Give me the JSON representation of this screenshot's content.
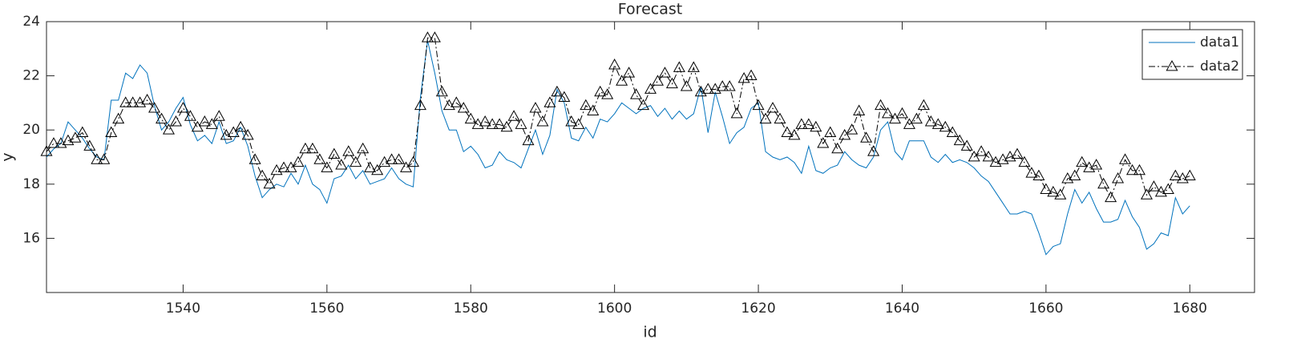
{
  "chart_data": {
    "type": "line",
    "title": "Forecast",
    "x_label": "id",
    "y_label": "y",
    "x": [
      1521,
      1522,
      1523,
      1524,
      1525,
      1526,
      1527,
      1528,
      1529,
      1530,
      1531,
      1532,
      1533,
      1534,
      1535,
      1536,
      1537,
      1538,
      1539,
      1540,
      1541,
      1542,
      1543,
      1544,
      1545,
      1546,
      1547,
      1548,
      1549,
      1550,
      1551,
      1552,
      1553,
      1554,
      1555,
      1556,
      1557,
      1558,
      1559,
      1560,
      1561,
      1562,
      1563,
      1564,
      1565,
      1566,
      1567,
      1568,
      1569,
      1570,
      1571,
      1572,
      1573,
      1574,
      1575,
      1576,
      1577,
      1578,
      1579,
      1580,
      1581,
      1582,
      1583,
      1584,
      1585,
      1586,
      1587,
      1588,
      1589,
      1590,
      1591,
      1592,
      1593,
      1594,
      1595,
      1596,
      1597,
      1598,
      1599,
      1600,
      1601,
      1602,
      1603,
      1604,
      1605,
      1606,
      1607,
      1608,
      1609,
      1610,
      1611,
      1612,
      1613,
      1614,
      1615,
      1616,
      1617,
      1618,
      1619,
      1620,
      1621,
      1622,
      1623,
      1624,
      1625,
      1626,
      1627,
      1628,
      1629,
      1630,
      1631,
      1632,
      1633,
      1634,
      1635,
      1636,
      1637,
      1638,
      1639,
      1640,
      1641,
      1642,
      1643,
      1644,
      1645,
      1646,
      1647,
      1648,
      1649,
      1650,
      1651,
      1652,
      1653,
      1654,
      1655,
      1656,
      1657,
      1658,
      1659,
      1660,
      1661,
      1662,
      1663,
      1664,
      1665,
      1666,
      1667,
      1668,
      1669,
      1670,
      1671,
      1672,
      1673,
      1674,
      1675,
      1676,
      1677,
      1678,
      1679,
      1680
    ],
    "series": [
      {
        "name": "data1",
        "color": "#0072bd",
        "linestyle": "solid",
        "marker": "none",
        "values": [
          19.0,
          19.3,
          19.5,
          20.3,
          20.0,
          19.7,
          19.3,
          19.0,
          18.9,
          21.1,
          21.1,
          22.1,
          21.9,
          22.4,
          22.1,
          20.9,
          20.0,
          20.3,
          20.8,
          21.2,
          20.2,
          19.6,
          19.8,
          19.5,
          20.3,
          19.5,
          19.6,
          20.1,
          19.4,
          18.3,
          17.5,
          17.8,
          18.0,
          17.9,
          18.4,
          18.0,
          18.7,
          18.0,
          17.8,
          17.3,
          18.2,
          18.3,
          18.7,
          18.2,
          18.5,
          18.0,
          18.1,
          18.2,
          18.6,
          18.2,
          18.0,
          17.9,
          21.2,
          23.3,
          22.1,
          20.7,
          20.0,
          20.0,
          19.2,
          19.4,
          19.1,
          18.6,
          18.7,
          19.2,
          18.9,
          18.8,
          18.6,
          19.3,
          20.0,
          19.1,
          19.8,
          21.5,
          21.0,
          19.7,
          19.6,
          20.1,
          19.7,
          20.4,
          20.3,
          20.6,
          21.0,
          20.8,
          20.6,
          20.8,
          20.9,
          20.5,
          20.8,
          20.4,
          20.7,
          20.4,
          20.6,
          21.6,
          19.9,
          21.4,
          20.5,
          19.5,
          19.9,
          20.1,
          20.8,
          21.0,
          19.2,
          19.0,
          18.9,
          19.0,
          18.8,
          18.4,
          19.4,
          18.5,
          18.4,
          18.6,
          18.7,
          19.2,
          18.9,
          18.7,
          18.6,
          19.0,
          20.0,
          20.3,
          19.2,
          18.9,
          19.6,
          19.6,
          19.6,
          19.0,
          18.8,
          19.1,
          18.8,
          18.9,
          18.8,
          18.6,
          18.3,
          18.1,
          17.7,
          17.3,
          16.9,
          16.9,
          17.0,
          16.9,
          16.2,
          15.4,
          15.7,
          15.8,
          16.9,
          17.8,
          17.3,
          17.7,
          17.1,
          16.6,
          16.6,
          16.7,
          17.4,
          16.8,
          16.4,
          15.6,
          15.8,
          16.2,
          16.1,
          17.5,
          16.9,
          17.2
        ]
      },
      {
        "name": "data2",
        "color": "#000000",
        "linestyle": "dashdot",
        "marker": "triangle",
        "values": [
          19.2,
          19.5,
          19.5,
          19.6,
          19.7,
          19.9,
          19.4,
          18.9,
          18.9,
          19.9,
          20.4,
          21.0,
          21.0,
          21.0,
          21.1,
          20.8,
          20.4,
          20.0,
          20.3,
          20.8,
          20.5,
          20.1,
          20.3,
          20.2,
          20.5,
          19.8,
          19.9,
          20.1,
          19.8,
          18.9,
          18.3,
          18.0,
          18.5,
          18.6,
          18.6,
          18.8,
          19.3,
          19.3,
          18.9,
          18.6,
          19.1,
          18.7,
          19.2,
          18.8,
          19.3,
          18.6,
          18.5,
          18.8,
          18.9,
          18.9,
          18.6,
          18.8,
          20.9,
          23.4,
          23.4,
          21.4,
          20.9,
          21.0,
          20.8,
          20.4,
          20.2,
          20.3,
          20.2,
          20.2,
          20.1,
          20.5,
          20.2,
          19.6,
          20.8,
          20.3,
          21.0,
          21.4,
          21.2,
          20.3,
          20.2,
          20.9,
          20.7,
          21.4,
          21.3,
          22.4,
          21.8,
          22.1,
          21.3,
          20.9,
          21.5,
          21.8,
          22.1,
          21.7,
          22.3,
          21.6,
          22.3,
          21.4,
          21.5,
          21.5,
          21.6,
          21.6,
          20.6,
          21.9,
          22.0,
          20.9,
          20.4,
          20.8,
          20.4,
          19.9,
          19.8,
          20.2,
          20.2,
          20.1,
          19.5,
          19.9,
          19.3,
          19.8,
          20.0,
          20.7,
          19.7,
          19.2,
          20.9,
          20.6,
          20.4,
          20.6,
          20.2,
          20.4,
          20.9,
          20.3,
          20.2,
          20.1,
          19.9,
          19.6,
          19.4,
          19.0,
          19.2,
          19.0,
          18.8,
          18.9,
          19.0,
          19.1,
          18.8,
          18.4,
          18.3,
          17.8,
          17.7,
          17.6,
          18.2,
          18.3,
          18.8,
          18.6,
          18.7,
          18.0,
          17.5,
          18.2,
          18.9,
          18.5,
          18.5,
          17.6,
          17.9,
          17.7,
          17.8,
          18.3,
          18.2,
          18.3
        ]
      }
    ],
    "xlim": [
      1521,
      1689
    ],
    "xticks": [
      1540,
      1560,
      1580,
      1600,
      1620,
      1640,
      1660,
      1680
    ],
    "ylim": [
      14,
      24
    ],
    "yticks": [
      16,
      18,
      20,
      22,
      24
    ],
    "grid": false,
    "legend": "northeast"
  }
}
